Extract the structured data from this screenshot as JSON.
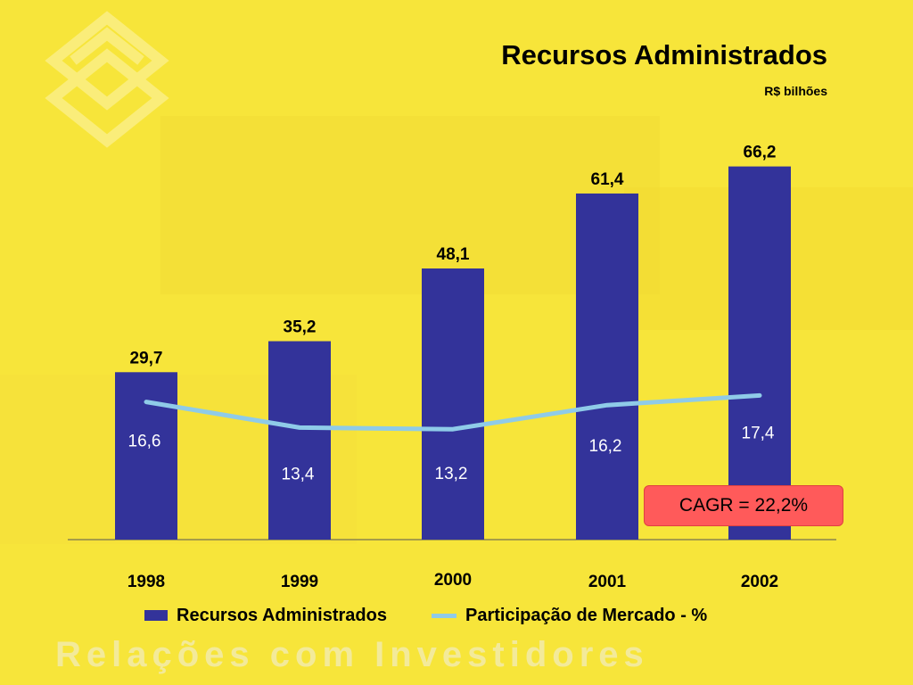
{
  "colors": {
    "background": "#f7e53a",
    "bar": "#33339a",
    "line": "#8fcbe8",
    "cagr_box": "#ff5a5a"
  },
  "logo": {
    "icon": "banco-do-brasil-logo-icon"
  },
  "cagr_label": "CAGR = 22,2%",
  "footer_text": "Relações com Investidores",
  "chart_data": {
    "type": "bar",
    "title": "Recursos Administrados",
    "subtitle": "R$ bilhões",
    "categories": [
      "1998",
      "1999",
      "2000",
      "2001",
      "2002"
    ],
    "series": [
      {
        "name": "Recursos Administrados",
        "type": "bar",
        "values": [
          29.7,
          35.2,
          48.1,
          61.4,
          66.2
        ],
        "labels": [
          "29,7",
          "35,2",
          "48,1",
          "61,4",
          "66,2"
        ]
      },
      {
        "name": "Participação de Mercado - %",
        "type": "line",
        "values": [
          16.6,
          13.4,
          13.2,
          16.2,
          17.4
        ],
        "labels": [
          "16,6",
          "13,4",
          "13,2",
          "16,2",
          "17,4"
        ]
      }
    ],
    "legend_position": "bottom",
    "grid": false
  }
}
